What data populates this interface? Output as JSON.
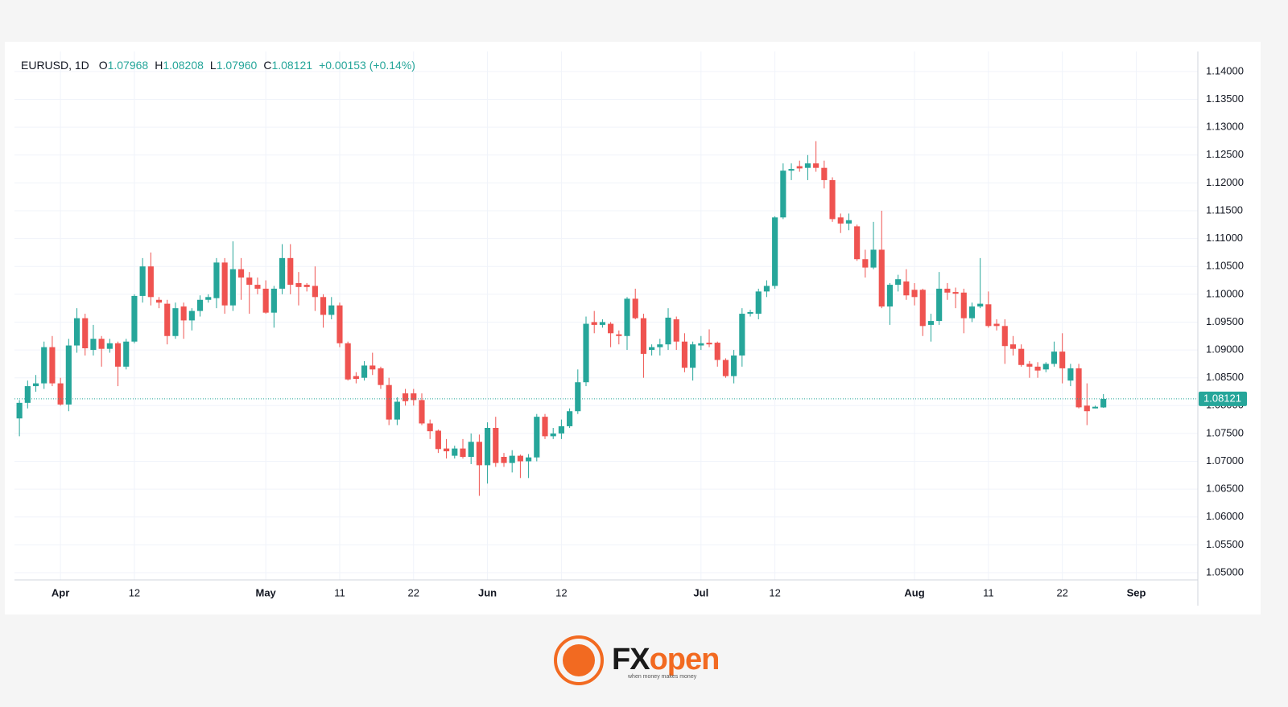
{
  "chart_data": {
    "type": "candlestick",
    "symbol": "EURUSD, 1D",
    "legend": [
      {
        "label": "O",
        "value": "1.07968"
      },
      {
        "label": "H",
        "value": "1.08208"
      },
      {
        "label": "L",
        "value": "1.07960"
      },
      {
        "label": "C",
        "value": "1.08121"
      }
    ],
    "change": "+0.00153 (+0.14%)",
    "up_color": "#26a69a",
    "down_color": "#ef5350",
    "grid": true,
    "price_line": true,
    "open": [
      1.0777,
      1.0805,
      1.0835,
      1.084,
      1.0905,
      1.084,
      1.0802,
      1.0908,
      1.0957,
      1.09,
      1.092,
      1.0902,
      1.0912,
      1.087,
      1.0915,
      1.0997,
      1.105,
      1.099,
      1.0983,
      1.0925,
      1.0978,
      1.0953,
      1.097,
      1.099,
      1.0993,
      1.1057,
      1.098,
      1.1045,
      1.103,
      1.1017,
      1.101,
      1.0967,
      1.101,
      1.1065,
      1.102,
      1.1017,
      1.1015,
      1.0995,
      1.0963,
      1.098,
      1.0912,
      1.0853,
      1.085,
      1.0872,
      1.0867,
      1.0837,
      1.0775,
      1.0822,
      1.0822,
      1.081,
      1.0768,
      1.0755,
      1.0723,
      1.071,
      1.0723,
      1.0708,
      1.0735,
      1.0693,
      1.076,
      1.0708,
      1.0697,
      1.071,
      1.07,
      1.0707,
      1.078,
      1.0745,
      1.075,
      1.0763,
      1.079,
      1.0842,
      1.095,
      1.0945,
      1.0947,
      1.0928,
      1.0925,
      1.0992,
      1.0957,
      1.09,
      1.0905,
      1.091,
      1.0955,
      1.0915,
      1.0868,
      1.0908,
      1.0913,
      1.0913,
      1.0882,
      1.0853,
      1.089,
      1.0965,
      1.0965,
      1.1005,
      1.1015,
      1.1138,
      1.1222,
      1.123,
      1.1227,
      1.1235,
      1.1227,
      1.1205,
      1.1138,
      1.1127,
      1.1122,
      1.1063,
      1.1048,
      1.108,
      1.0978,
      1.1017,
      1.1023,
      1.1008,
      1.1008,
      1.0945,
      1.0952,
      1.101,
      1.1004,
      1.1003,
      1.0957,
      1.0978,
      1.0982,
      1.0947,
      1.0943,
      1.091,
      1.0902,
      1.0875,
      1.087,
      1.0865,
      1.0875,
      1.0897,
      1.0845,
      1.0867,
      1.08,
      1.0795,
      1.07968
    ],
    "high": [
      1.081,
      1.0845,
      1.0855,
      1.0915,
      1.0925,
      1.085,
      1.092,
      1.0975,
      1.0965,
      1.0945,
      1.0925,
      1.092,
      1.0915,
      1.092,
      1.1,
      1.1065,
      1.1075,
      1.0995,
      1.099,
      1.0985,
      1.0985,
      1.0975,
      1.0998,
      1.1,
      1.1065,
      1.1065,
      1.1095,
      1.1065,
      1.104,
      1.103,
      1.1025,
      1.1015,
      1.109,
      1.109,
      1.104,
      1.102,
      1.105,
      1.1,
      1.0995,
      1.0985,
      1.0915,
      1.086,
      1.088,
      1.0895,
      1.087,
      1.085,
      1.0815,
      1.083,
      1.083,
      1.0822,
      1.0775,
      1.0757,
      1.074,
      1.0728,
      1.074,
      1.075,
      1.0748,
      1.077,
      1.078,
      1.0715,
      1.072,
      1.0712,
      1.0713,
      1.0785,
      1.0785,
      1.076,
      1.0775,
      1.0795,
      1.0865,
      1.096,
      1.097,
      1.0955,
      1.095,
      1.0935,
      1.0995,
      1.101,
      1.0965,
      1.091,
      1.092,
      1.0975,
      1.096,
      1.093,
      1.0915,
      1.0925,
      1.0937,
      1.0915,
      1.0885,
      1.09,
      1.0975,
      1.0972,
      1.101,
      1.1025,
      1.114,
      1.1235,
      1.1235,
      1.124,
      1.125,
      1.1275,
      1.124,
      1.121,
      1.1145,
      1.1145,
      1.1125,
      1.108,
      1.113,
      1.115,
      1.102,
      1.1035,
      1.1045,
      1.102,
      1.101,
      1.0965,
      1.104,
      1.102,
      1.1012,
      1.101,
      1.0985,
      1.1065,
      1.1005,
      1.0955,
      1.0955,
      1.0925,
      1.091,
      1.088,
      1.0878,
      1.0878,
      1.0915,
      1.093,
      1.0875,
      1.0875,
      1.084,
      1.08,
      1.08208
    ],
    "low": [
      1.0745,
      1.0795,
      1.0825,
      1.083,
      1.0835,
      1.08,
      1.079,
      1.0895,
      1.089,
      1.089,
      1.087,
      1.0895,
      1.0835,
      1.0865,
      1.0912,
      1.0985,
      1.098,
      1.0975,
      1.091,
      1.092,
      1.092,
      1.0935,
      1.096,
      1.0985,
      1.0975,
      1.0965,
      1.097,
      1.099,
      1.0965,
      1.1,
      1.0965,
      1.094,
      1.1,
      1.1,
      1.098,
      1.1005,
      1.097,
      1.094,
      1.0955,
      1.0905,
      1.0845,
      1.084,
      1.0845,
      1.0855,
      1.083,
      1.0765,
      1.0765,
      1.08,
      1.08,
      1.0765,
      1.074,
      1.0715,
      1.0705,
      1.0705,
      1.0705,
      1.0695,
      1.0638,
      1.066,
      1.069,
      1.069,
      1.068,
      1.067,
      1.067,
      1.07,
      1.074,
      1.074,
      1.074,
      1.076,
      1.0785,
      1.0835,
      1.093,
      1.094,
      1.0905,
      1.091,
      1.09,
      1.0955,
      1.085,
      1.089,
      1.089,
      1.09,
      1.09,
      1.086,
      1.0845,
      1.09,
      1.0905,
      1.087,
      1.085,
      1.084,
      1.087,
      1.096,
      1.0955,
      1.0995,
      1.101,
      1.1135,
      1.1205,
      1.122,
      1.1205,
      1.122,
      1.119,
      1.113,
      1.111,
      1.1115,
      1.106,
      1.103,
      1.1045,
      1.0975,
      1.0945,
      1.1005,
      1.099,
      1.098,
      1.0925,
      1.0915,
      1.0945,
      1.099,
      1.0975,
      1.093,
      1.095,
      1.0975,
      1.094,
      1.0935,
      1.0875,
      1.089,
      1.087,
      1.085,
      1.085,
      1.086,
      1.087,
      1.084,
      1.0835,
      1.0795,
      1.0765,
      1.0795,
      1.0796
    ],
    "close": [
      1.0805,
      1.0835,
      1.084,
      1.0905,
      1.084,
      1.0802,
      1.0908,
      1.0957,
      1.0903,
      1.092,
      1.0902,
      1.0912,
      1.087,
      1.0915,
      1.0997,
      1.105,
      1.0995,
      1.0985,
      1.0925,
      1.0975,
      1.0953,
      1.097,
      1.099,
      1.0995,
      1.1057,
      1.098,
      1.1045,
      1.103,
      1.1017,
      1.101,
      1.0967,
      1.101,
      1.1065,
      1.1017,
      1.1013,
      1.1013,
      1.0995,
      1.0963,
      1.098,
      1.0912,
      1.0847,
      1.0848,
      1.0872,
      1.0865,
      1.0837,
      1.0775,
      1.0807,
      1.0808,
      1.081,
      1.0768,
      1.0754,
      1.0722,
      1.0718,
      1.0723,
      1.0708,
      1.0735,
      1.0693,
      1.076,
      1.0697,
      1.0697,
      1.071,
      1.07,
      1.0707,
      1.078,
      1.0745,
      1.075,
      1.0763,
      1.079,
      1.0842,
      1.0947,
      1.0945,
      1.095,
      1.093,
      1.0925,
      1.0992,
      1.0957,
      1.0893,
      1.0905,
      1.091,
      1.0958,
      1.0915,
      1.0868,
      1.091,
      1.0912,
      1.091,
      1.0882,
      1.0853,
      1.089,
      1.0965,
      1.0968,
      1.1005,
      1.1015,
      1.1138,
      1.1222,
      1.1225,
      1.1226,
      1.1235,
      1.1227,
      1.1205,
      1.1135,
      1.1127,
      1.1133,
      1.1063,
      1.1048,
      1.108,
      1.0978,
      1.1017,
      1.1027,
      1.0998,
      1.0995,
      1.0943,
      1.0952,
      1.101,
      1.1003,
      1.1001,
      1.0957,
      1.0978,
      1.0983,
      1.0943,
      1.0943,
      1.0907,
      1.0902,
      1.0873,
      1.087,
      1.0863,
      1.0875,
      1.0897,
      1.0867,
      1.0867,
      1.0797,
      1.079,
      1.0798,
      1.08121
    ],
    "xlim": [
      -0.6,
      143.5
    ],
    "xticks": [
      {
        "value": 5,
        "label": "Apr"
      },
      {
        "value": 14,
        "label": "12"
      },
      {
        "value": 30,
        "label": "May"
      },
      {
        "value": 39,
        "label": "11"
      },
      {
        "value": 48,
        "label": "22"
      },
      {
        "value": 57,
        "label": "Jun"
      },
      {
        "value": 66,
        "label": "12"
      },
      {
        "value": 83,
        "label": "Jul"
      },
      {
        "value": 92,
        "label": "12"
      },
      {
        "value": 109,
        "label": "Aug"
      },
      {
        "value": 118,
        "label": "11"
      },
      {
        "value": 127,
        "label": "22"
      },
      {
        "value": 136,
        "label": "Sep"
      }
    ],
    "ylim": [
      1.0487,
      1.1436
    ],
    "yticks": [
      {
        "value": 1.05,
        "label": "1.05000"
      },
      {
        "value": 1.055,
        "label": "1.05500"
      },
      {
        "value": 1.06,
        "label": "1.06000"
      },
      {
        "value": 1.065,
        "label": "1.06500"
      },
      {
        "value": 1.07,
        "label": "1.07000"
      },
      {
        "value": 1.075,
        "label": "1.07500"
      },
      {
        "value": 1.08,
        "label": "1.08000"
      },
      {
        "value": 1.085,
        "label": "1.08500"
      },
      {
        "value": 1.09,
        "label": "1.09000"
      },
      {
        "value": 1.095,
        "label": "1.09500"
      },
      {
        "value": 1.1,
        "label": "1.10000"
      },
      {
        "value": 1.105,
        "label": "1.10500"
      },
      {
        "value": 1.11,
        "label": "1.11000"
      },
      {
        "value": 1.115,
        "label": "1.11500"
      },
      {
        "value": 1.12,
        "label": "1.12000"
      },
      {
        "value": 1.125,
        "label": "1.12500"
      },
      {
        "value": 1.13,
        "label": "1.13000"
      },
      {
        "value": 1.135,
        "label": "1.13500"
      },
      {
        "value": 1.14,
        "label": "1.14000"
      }
    ]
  },
  "footer": {
    "brand": [
      "FX",
      "open"
    ],
    "tagline": "when money makes money"
  }
}
